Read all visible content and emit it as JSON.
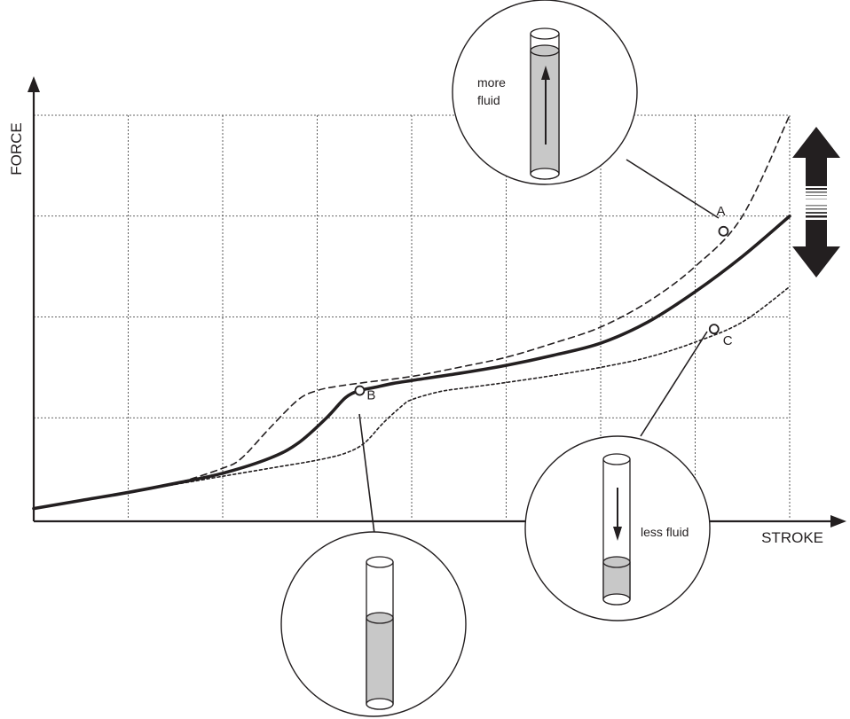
{
  "chart_data": {
    "type": "line",
    "title": "",
    "xlabel": "STROKE",
    "ylabel": "FORCE",
    "xlim": [
      0,
      8
    ],
    "ylim": [
      0,
      4
    ],
    "grid": true,
    "series": [
      {
        "style": "solid-thick",
        "x": [
          0,
          0.5,
          1,
          1.5,
          2,
          2.5,
          2.8,
          3.1,
          3.3,
          3.45,
          3.6,
          3.8,
          4.0,
          4.5,
          5,
          5.5,
          6,
          6.5,
          7,
          7.5,
          8
        ],
        "y": [
          0.1,
          0.18,
          0.26,
          0.35,
          0.45,
          0.6,
          0.75,
          1.0,
          1.2,
          1.27,
          1.3,
          1.34,
          1.37,
          1.44,
          1.52,
          1.62,
          1.74,
          1.95,
          2.25,
          2.6,
          3.0
        ]
      },
      {
        "style": "dashed",
        "x": [
          0,
          1,
          1.5,
          2,
          2.2,
          2.5,
          2.8,
          3.0,
          3.2,
          3.5,
          4,
          4.5,
          5,
          5.5,
          6,
          6.5,
          7,
          7.5,
          8
        ],
        "y": [
          0.1,
          0.26,
          0.35,
          0.5,
          0.6,
          0.9,
          1.18,
          1.27,
          1.31,
          1.35,
          1.41,
          1.5,
          1.6,
          1.74,
          1.9,
          2.15,
          2.5,
          3.0,
          4.0
        ]
      },
      {
        "style": "dotted",
        "x": [
          0,
          1,
          1.5,
          2,
          2.5,
          3,
          3.3,
          3.5,
          3.7,
          3.9,
          4.0,
          4.3,
          4.6,
          5,
          5.5,
          6,
          6.5,
          7,
          7.5,
          8
        ],
        "y": [
          0.1,
          0.26,
          0.34,
          0.42,
          0.5,
          0.58,
          0.65,
          0.75,
          0.95,
          1.12,
          1.18,
          1.26,
          1.3,
          1.35,
          1.42,
          1.5,
          1.6,
          1.75,
          1.95,
          2.3
        ]
      }
    ],
    "points": [
      {
        "label": "A",
        "x": 7.3,
        "y": 2.85,
        "series": 1
      },
      {
        "label": "B",
        "x": 3.45,
        "y": 1.27,
        "series": 0
      },
      {
        "label": "C",
        "x": 7.2,
        "y": 1.88,
        "series": 2
      }
    ]
  },
  "callouts": {
    "more_fluid": "more\nfluid",
    "less_fluid": "less fluid"
  },
  "icons": {
    "adjust": "up-down-arrow-icon"
  }
}
